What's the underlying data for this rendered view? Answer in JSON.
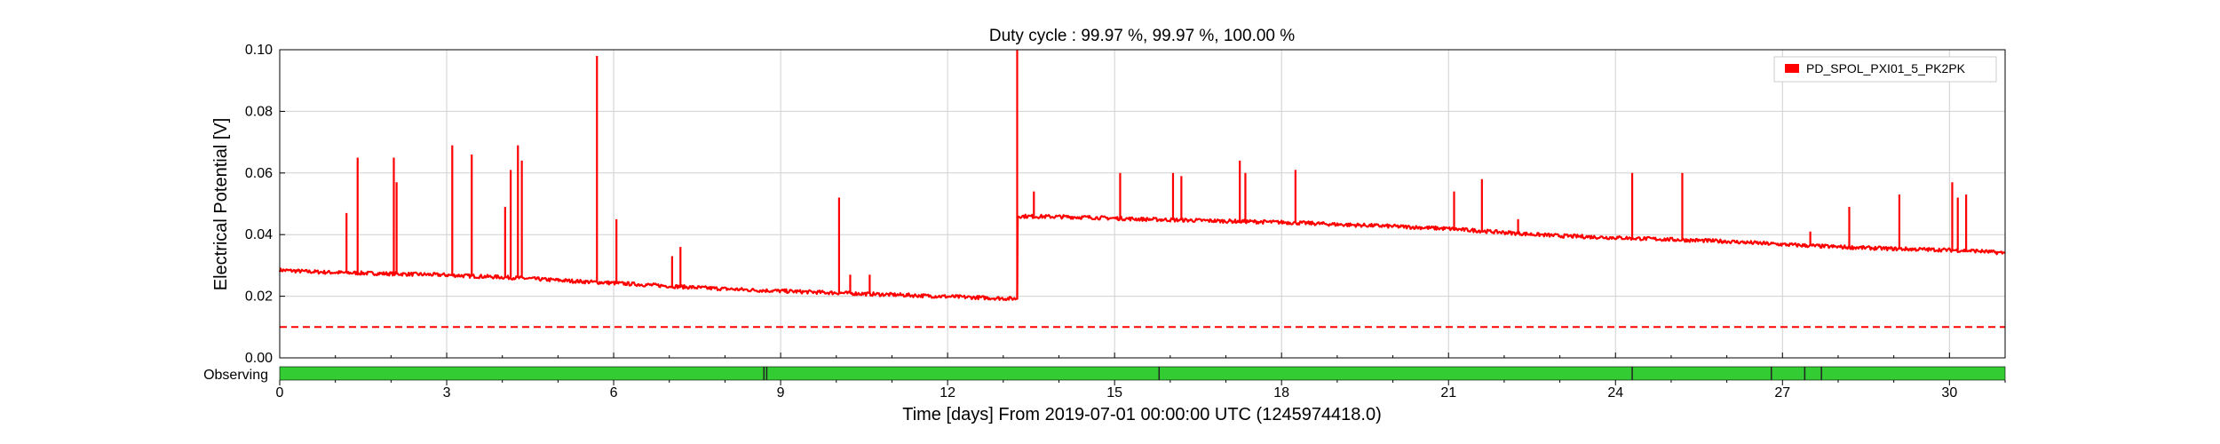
{
  "chart_data": {
    "type": "line",
    "title": "Duty cycle : 99.97 %, 99.97 %, 100.00 %",
    "xlabel": "Time [days] From 2019-07-01 00:00:00 UTC (1245974418.0)",
    "ylabel": "Electrical Potential [V]",
    "xlim": [
      0,
      31
    ],
    "ylim": [
      0,
      0.1
    ],
    "grid": true,
    "legend_position": "top-right",
    "x_ticks": [
      0,
      3,
      6,
      9,
      12,
      15,
      18,
      21,
      24,
      27,
      30
    ],
    "x_tick_labels": [
      "0",
      "3",
      "6",
      "9",
      "12",
      "15",
      "18",
      "21",
      "24",
      "27",
      "30"
    ],
    "y_ticks": [
      0,
      0.02,
      0.04,
      0.06,
      0.08,
      0.1
    ],
    "y_tick_labels": [
      "0.00",
      "0.02",
      "0.04",
      "0.06",
      "0.08",
      "0.10"
    ],
    "series": [
      {
        "name": "PD_SPOL_PXI01_5_PK2PK",
        "color": "#ff0000",
        "x": [
          0,
          0.5,
          1,
          1.5,
          2,
          2.5,
          3,
          3.5,
          4,
          4.5,
          5,
          5.5,
          6,
          6.5,
          7,
          7.5,
          8,
          8.5,
          9,
          9.5,
          10,
          10.5,
          11,
          11.5,
          12,
          12.5,
          13,
          13.25,
          13.26,
          13.5,
          14,
          14.5,
          15,
          15.5,
          16,
          16.5,
          17,
          17.5,
          18,
          18.5,
          19,
          19.5,
          20,
          20.5,
          21,
          21.5,
          22,
          22.5,
          23,
          23.5,
          24,
          24.5,
          25,
          25.5,
          26,
          26.5,
          27,
          27.5,
          28,
          28.5,
          29,
          29.5,
          30,
          30.5,
          31
        ],
        "y": [
          0.0285,
          0.028,
          0.0277,
          0.0275,
          0.0273,
          0.0271,
          0.0269,
          0.0265,
          0.0262,
          0.0257,
          0.0252,
          0.0247,
          0.0243,
          0.0238,
          0.0233,
          0.0228,
          0.0224,
          0.022,
          0.0217,
          0.0214,
          0.0211,
          0.0208,
          0.0205,
          0.0202,
          0.0199,
          0.0196,
          0.0193,
          0.0192,
          0.046,
          0.0459,
          0.0458,
          0.0456,
          0.0453,
          0.045,
          0.0448,
          0.0446,
          0.0444,
          0.0442,
          0.044,
          0.0437,
          0.0433,
          0.043,
          0.0427,
          0.0423,
          0.0419,
          0.0413,
          0.0407,
          0.0401,
          0.0396,
          0.0393,
          0.039,
          0.0387,
          0.0384,
          0.0381,
          0.0378,
          0.0373,
          0.0368,
          0.0364,
          0.036,
          0.0357,
          0.0354,
          0.0352,
          0.035,
          0.0347,
          0.034
        ],
        "spikes": [
          {
            "x": 1.2,
            "y": 0.047
          },
          {
            "x": 1.4,
            "y": 0.065
          },
          {
            "x": 2.05,
            "y": 0.065
          },
          {
            "x": 2.1,
            "y": 0.057
          },
          {
            "x": 3.1,
            "y": 0.069
          },
          {
            "x": 3.45,
            "y": 0.066
          },
          {
            "x": 4.05,
            "y": 0.049
          },
          {
            "x": 4.15,
            "y": 0.061
          },
          {
            "x": 4.28,
            "y": 0.069
          },
          {
            "x": 4.35,
            "y": 0.064
          },
          {
            "x": 5.7,
            "y": 0.098
          },
          {
            "x": 6.05,
            "y": 0.045
          },
          {
            "x": 7.05,
            "y": 0.033
          },
          {
            "x": 7.2,
            "y": 0.036
          },
          {
            "x": 10.05,
            "y": 0.052
          },
          {
            "x": 10.25,
            "y": 0.027
          },
          {
            "x": 10.6,
            "y": 0.027
          },
          {
            "x": 13.25,
            "y": 0.1
          },
          {
            "x": 13.55,
            "y": 0.054
          },
          {
            "x": 15.1,
            "y": 0.06
          },
          {
            "x": 16.05,
            "y": 0.06
          },
          {
            "x": 16.2,
            "y": 0.059
          },
          {
            "x": 17.25,
            "y": 0.064
          },
          {
            "x": 17.35,
            "y": 0.06
          },
          {
            "x": 18.25,
            "y": 0.061
          },
          {
            "x": 21.1,
            "y": 0.054
          },
          {
            "x": 21.6,
            "y": 0.058
          },
          {
            "x": 22.25,
            "y": 0.045
          },
          {
            "x": 24.3,
            "y": 0.06
          },
          {
            "x": 25.2,
            "y": 0.06
          },
          {
            "x": 27.5,
            "y": 0.041
          },
          {
            "x": 28.2,
            "y": 0.049
          },
          {
            "x": 29.1,
            "y": 0.053
          },
          {
            "x": 30.05,
            "y": 0.057
          },
          {
            "x": 30.15,
            "y": 0.052
          },
          {
            "x": 30.3,
            "y": 0.053
          }
        ]
      }
    ],
    "threshold_line": {
      "y": 0.01,
      "color": "#ff0000",
      "style": "dashed"
    },
    "state_bar": {
      "label": "Observing",
      "color": "#33cc33",
      "gap_color": "#222222",
      "gaps": [
        8.7,
        8.75,
        15.8,
        24.3,
        26.8,
        27.4,
        27.7
      ]
    }
  }
}
